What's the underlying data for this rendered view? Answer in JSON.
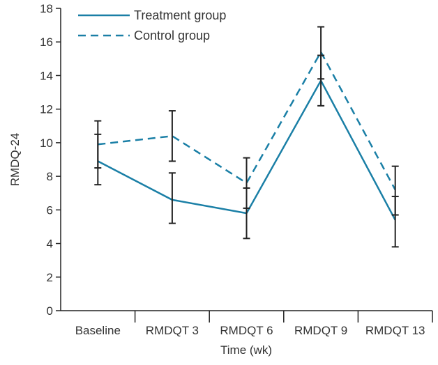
{
  "chart_data": {
    "type": "line",
    "title": "",
    "xlabel": "Time (wk)",
    "ylabel": "RMDQ-24",
    "categories": [
      "Baseline",
      "RMDQT 3",
      "RMDQT 6",
      "RMDQT 9",
      "RMDQT 13"
    ],
    "ylim": [
      0,
      18
    ],
    "yticks": [
      0,
      2,
      4,
      6,
      8,
      10,
      12,
      14,
      16,
      18
    ],
    "legend_position": "top-left",
    "series": [
      {
        "name": "Treatment group",
        "style": "solid",
        "color": "#1a7fa6",
        "values": [
          8.9,
          6.6,
          5.8,
          13.7,
          5.4
        ],
        "err_low": [
          7.5,
          5.2,
          4.3,
          12.2,
          3.8
        ],
        "err_high": [
          10.5,
          8.2,
          7.3,
          15.2,
          6.8
        ]
      },
      {
        "name": "Control group",
        "style": "dashed",
        "color": "#1a7fa6",
        "values": [
          9.9,
          10.4,
          7.6,
          15.4,
          7.2
        ],
        "err_low": [
          8.5,
          8.9,
          6.1,
          13.8,
          5.7
        ],
        "err_high": [
          11.3,
          11.9,
          9.1,
          16.9,
          8.6
        ]
      }
    ]
  }
}
